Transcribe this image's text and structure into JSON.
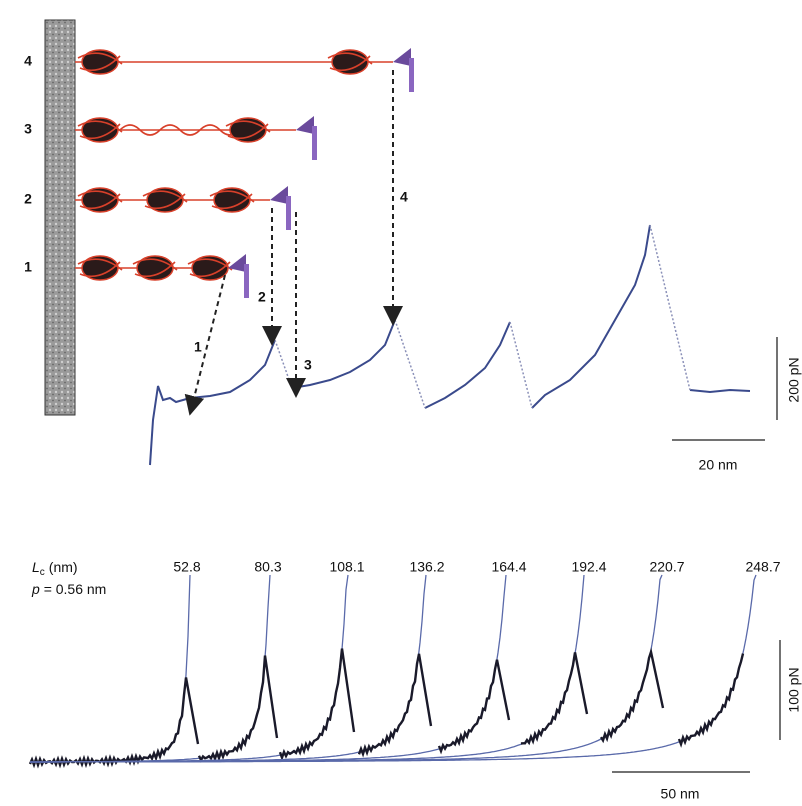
{
  "panel_a": {
    "row_labels": [
      "1",
      "2",
      "3",
      "4"
    ],
    "arrow_labels": [
      "1",
      "2",
      "3",
      "4"
    ],
    "scale_force": "200 pN",
    "scale_length": "20 nm"
  },
  "panel_b": {
    "lc_symbol": "L",
    "lc_subscript": "c",
    "lc_unit": "(nm)",
    "p_symbol": "p",
    "p_value": "= 0.56 nm",
    "lc_values": [
      "52.8",
      "80.3",
      "108.1",
      "136.2",
      "164.4",
      "192.4",
      "220.7",
      "248.7"
    ],
    "scale_force": "100 pN",
    "scale_length": "50 nm"
  }
}
